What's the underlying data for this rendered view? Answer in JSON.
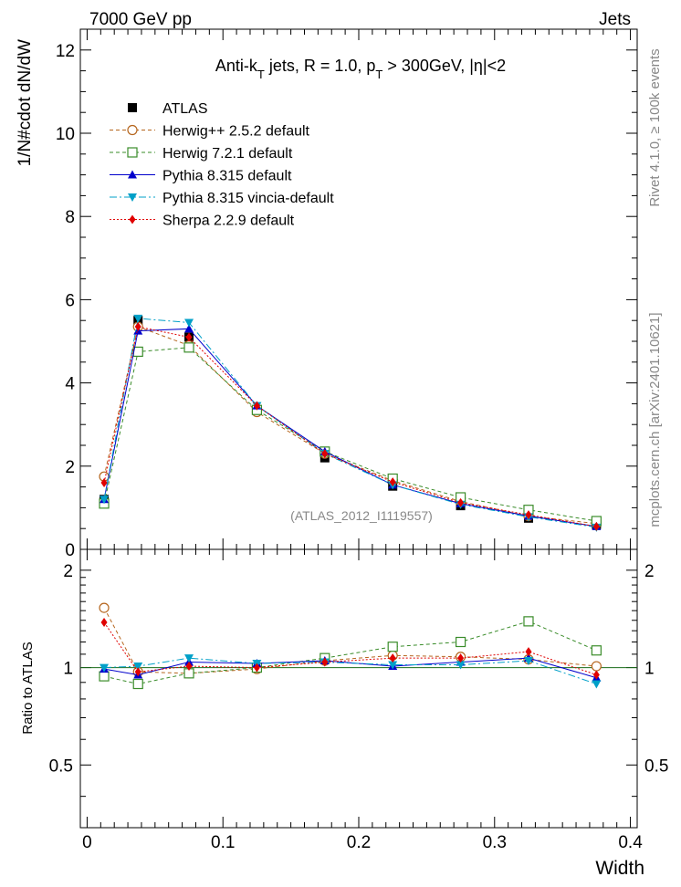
{
  "header": {
    "left": "7000 GeV pp",
    "right": "Jets"
  },
  "title": {
    "prefix": "Anti-k",
    "sub1": "T",
    "mid": " jets, R = 1.0, p",
    "sub2": "T",
    "suffix": " > 300GeV, |η|<2"
  },
  "side_labels": {
    "rivet": "Rivet 4.1.0, ≥ 100k events",
    "mcplots": "mcplots.cern.ch [arXiv:2401.10621]"
  },
  "watermark": "(ATLAS_2012_I1119557)",
  "chart_data": [
    {
      "type": "scatter",
      "panel": "main",
      "ylabel": "1/N#cdot dN/dW",
      "xlabel": "Width",
      "xlim": [
        -0.005,
        0.405
      ],
      "ylim": [
        0,
        12.5
      ],
      "yticks": [
        0,
        2,
        4,
        6,
        8,
        10,
        12
      ],
      "yticklabels": [
        "0",
        "2",
        "4",
        "6",
        "8",
        "10",
        "12"
      ],
      "x": [
        0.0125,
        0.0375,
        0.075,
        0.125,
        0.175,
        0.225,
        0.275,
        0.325,
        0.375
      ],
      "series": [
        {
          "name": "ATLAS",
          "color": "#000000",
          "marker": "square",
          "values": [
            1.2,
            5.5,
            5.1,
            3.35,
            2.2,
            1.52,
            1.05,
            0.75,
            0.6
          ]
        },
        {
          "name": "Herwig++ 2.5.2 default",
          "color": "#b5651d",
          "marker": "open-circle",
          "dash": "4,3",
          "values": [
            1.75,
            5.35,
            4.9,
            3.3,
            2.3,
            1.65,
            1.15,
            0.8,
            0.62
          ]
        },
        {
          "name": "Herwig 7.2.1 default",
          "color": "#3a8c2a",
          "marker": "open-square",
          "dash": "4,3",
          "values": [
            1.1,
            4.75,
            4.85,
            3.35,
            2.35,
            1.7,
            1.25,
            0.95,
            0.68
          ]
        },
        {
          "name": "Pythia 8.315 default",
          "color": "#0000cc",
          "marker": "triangle-up",
          "dash": "",
          "values": [
            1.2,
            5.25,
            5.3,
            3.45,
            2.35,
            1.55,
            1.1,
            0.8,
            0.55
          ]
        },
        {
          "name": "Pythia 8.315 vincia-default",
          "color": "#00a0c8",
          "marker": "triangle-down",
          "dash": "8,3,2,3",
          "values": [
            1.2,
            5.55,
            5.45,
            3.45,
            2.3,
            1.55,
            1.08,
            0.78,
            0.53
          ]
        },
        {
          "name": "Sherpa 2.2.9 default",
          "color": "#e00000",
          "marker": "diamond",
          "dash": "2,2",
          "values": [
            1.6,
            5.35,
            5.1,
            3.45,
            2.3,
            1.62,
            1.12,
            0.83,
            0.55
          ]
        }
      ]
    },
    {
      "type": "scatter",
      "panel": "ratio",
      "ylabel": "Ratio to ATLAS",
      "xlabel": "Width",
      "xlim": [
        -0.005,
        0.405
      ],
      "ylim": [
        0.32,
        2.32
      ],
      "yticks": [
        0.5,
        1,
        2
      ],
      "yticklabels": [
        "0.5",
        "1",
        "2"
      ],
      "xticks": [
        0,
        0.1,
        0.2,
        0.3,
        0.4
      ],
      "xticklabels": [
        "0",
        "0.1",
        "0.2",
        "0.3",
        "0.4"
      ],
      "x": [
        0.0125,
        0.0375,
        0.075,
        0.125,
        0.175,
        0.225,
        0.275,
        0.325,
        0.375
      ],
      "series": [
        {
          "name": "Herwig++ 2.5.2 default",
          "color": "#b5651d",
          "marker": "open-circle",
          "dash": "4,3",
          "values": [
            1.53,
            0.97,
            0.96,
            0.99,
            1.05,
            1.09,
            1.08,
            1.06,
            1.01
          ]
        },
        {
          "name": "Herwig 7.2.1 default",
          "color": "#3a8c2a",
          "marker": "open-square",
          "dash": "4,3",
          "values": [
            0.94,
            0.89,
            0.96,
            1.0,
            1.07,
            1.16,
            1.2,
            1.39,
            1.13
          ]
        },
        {
          "name": "Pythia 8.315 default",
          "color": "#0000cc",
          "marker": "triangle-up",
          "dash": "",
          "values": [
            0.99,
            0.95,
            1.04,
            1.03,
            1.05,
            1.01,
            1.04,
            1.07,
            0.93
          ]
        },
        {
          "name": "Pythia 8.315 vincia-default",
          "color": "#00a0c8",
          "marker": "triangle-down",
          "dash": "8,3,2,3",
          "values": [
            1.0,
            1.01,
            1.07,
            1.03,
            1.04,
            1.02,
            1.02,
            1.05,
            0.89
          ]
        },
        {
          "name": "Sherpa 2.2.9 default",
          "color": "#e00000",
          "marker": "diamond",
          "dash": "2,2",
          "values": [
            1.38,
            0.97,
            1.01,
            1.0,
            1.04,
            1.07,
            1.07,
            1.12,
            0.95
          ]
        }
      ]
    }
  ]
}
